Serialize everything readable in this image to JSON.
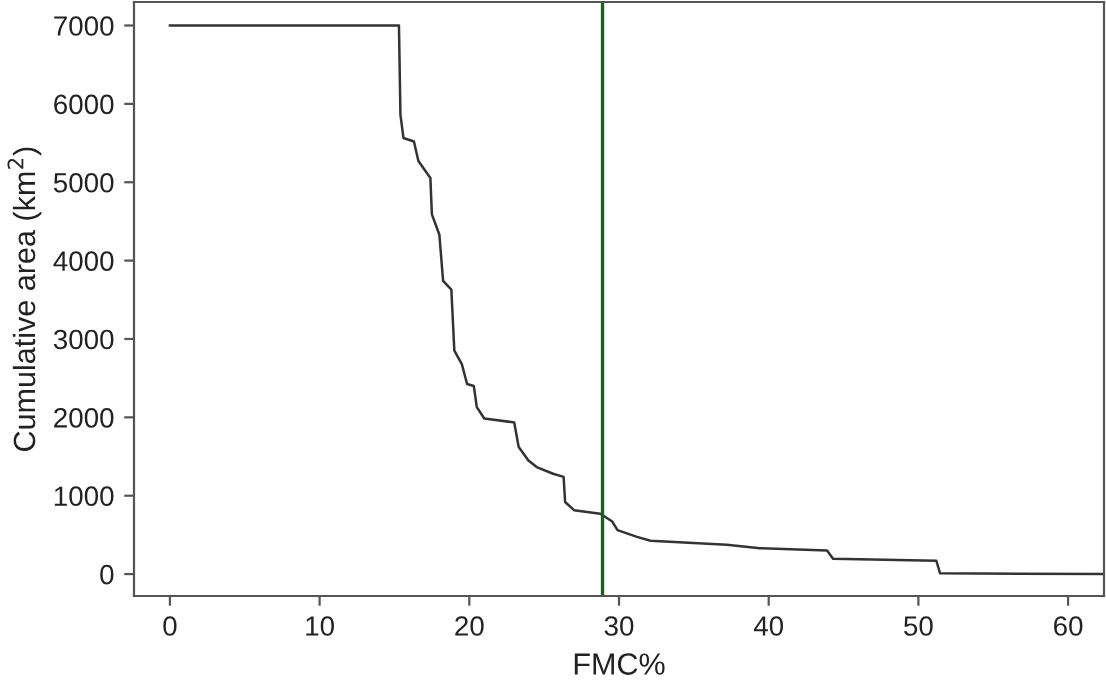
{
  "chart_data": {
    "type": "line",
    "xlabel": "FMC%",
    "ylabel": "Cumulative area (km$^{2}$)",
    "series": [
      {
        "color": "#333333",
        "x": [
          0,
          15.3,
          15.4,
          15.6,
          16.3,
          16.6,
          17.4,
          17.5,
          18.0,
          18.25,
          18.8,
          19.0,
          19.5,
          19.85,
          20.3,
          20.5,
          21.0,
          23.0,
          23.3,
          23.95,
          24.5,
          25.6,
          26.3,
          26.4,
          27.0,
          28.75,
          29.55,
          29.9,
          31.2,
          32.1,
          37.2,
          39.4,
          43.9,
          44.3,
          51.2,
          51.45,
          62.4
        ],
        "values": [
          7000,
          7000,
          5860,
          5565,
          5520,
          5270,
          5055,
          4590,
          4330,
          3740,
          3630,
          2850,
          2680,
          2425,
          2400,
          2130,
          1985,
          1935,
          1620,
          1450,
          1365,
          1280,
          1240,
          920,
          815,
          770,
          670,
          560,
          475,
          425,
          375,
          330,
          300,
          195,
          170,
          10,
          0
        ]
      }
    ],
    "ref_lines": [
      {
        "axis": "x",
        "value": 28.9,
        "color": "#1b5e20"
      }
    ],
    "xlim": [
      -2.4,
      62.4
    ],
    "xticks": [
      0,
      10,
      20,
      30,
      40,
      50,
      60
    ],
    "ylim": [
      -280,
      7300
    ],
    "yticks": [
      0,
      1000,
      2000,
      3000,
      4000,
      5000,
      6000,
      7000
    ],
    "grid": false,
    "marker": "none",
    "line_style": "solid"
  }
}
